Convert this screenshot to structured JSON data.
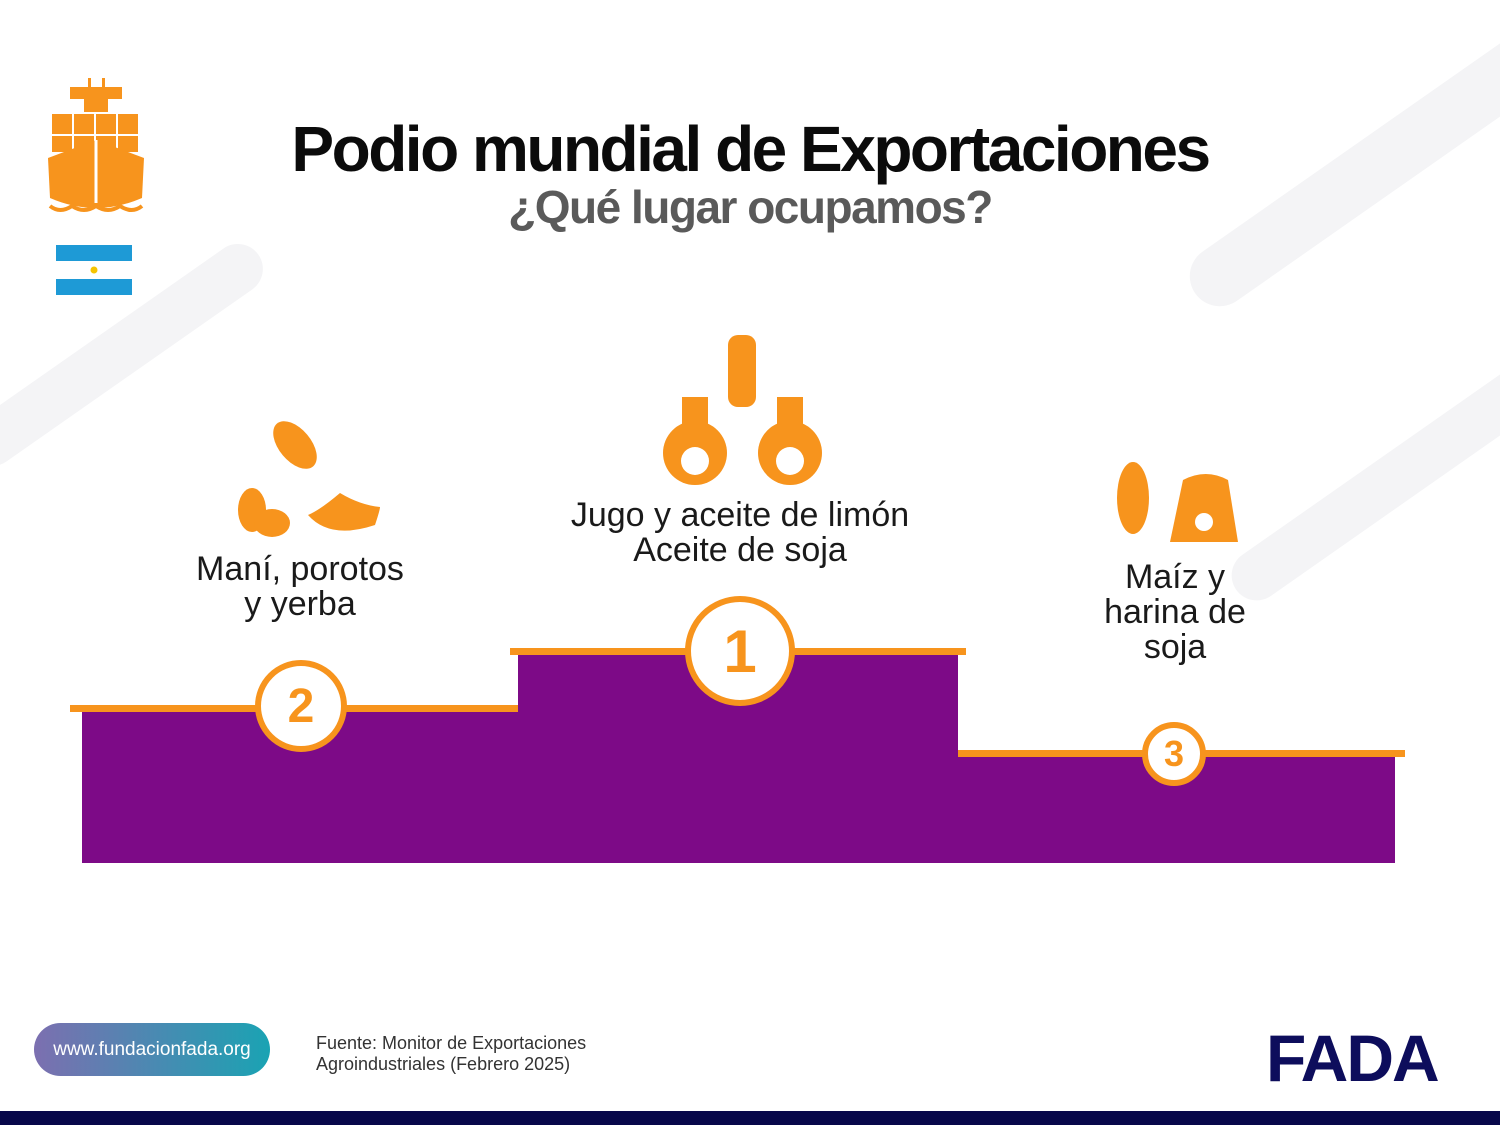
{
  "header": {
    "title": "Podio mundial de Exportaciones",
    "subtitle": "¿Qué lugar ocupamos?"
  },
  "podium": [
    {
      "rank": "1",
      "label_lines": [
        "Jugo y aceite de limón",
        "Aceite de soja"
      ]
    },
    {
      "rank": "2",
      "label_lines": [
        "Maní, porotos",
        "y yerba"
      ]
    },
    {
      "rank": "3",
      "label_lines": [
        "Maíz y",
        "harina de",
        "soja"
      ]
    }
  ],
  "footer": {
    "website": "www.fundacionfada.org",
    "source_lines": [
      "Fuente: Monitor de Exportaciones",
      "Agroindustriales (Febrero 2025)"
    ],
    "logo": "FADA"
  },
  "colors": {
    "podium": "#7d0a87",
    "accent": "#f7941d",
    "navy": "#07074a",
    "flag_blue": "#1e9ad6"
  },
  "icons": [
    "cargo-ship-icon",
    "argentina-flag-icon",
    "peanut-icon",
    "bean-icon",
    "yerba-leaf-icon",
    "lemon-bottle-icon",
    "oil-jug-icon",
    "corn-icon",
    "flour-sack-icon"
  ]
}
